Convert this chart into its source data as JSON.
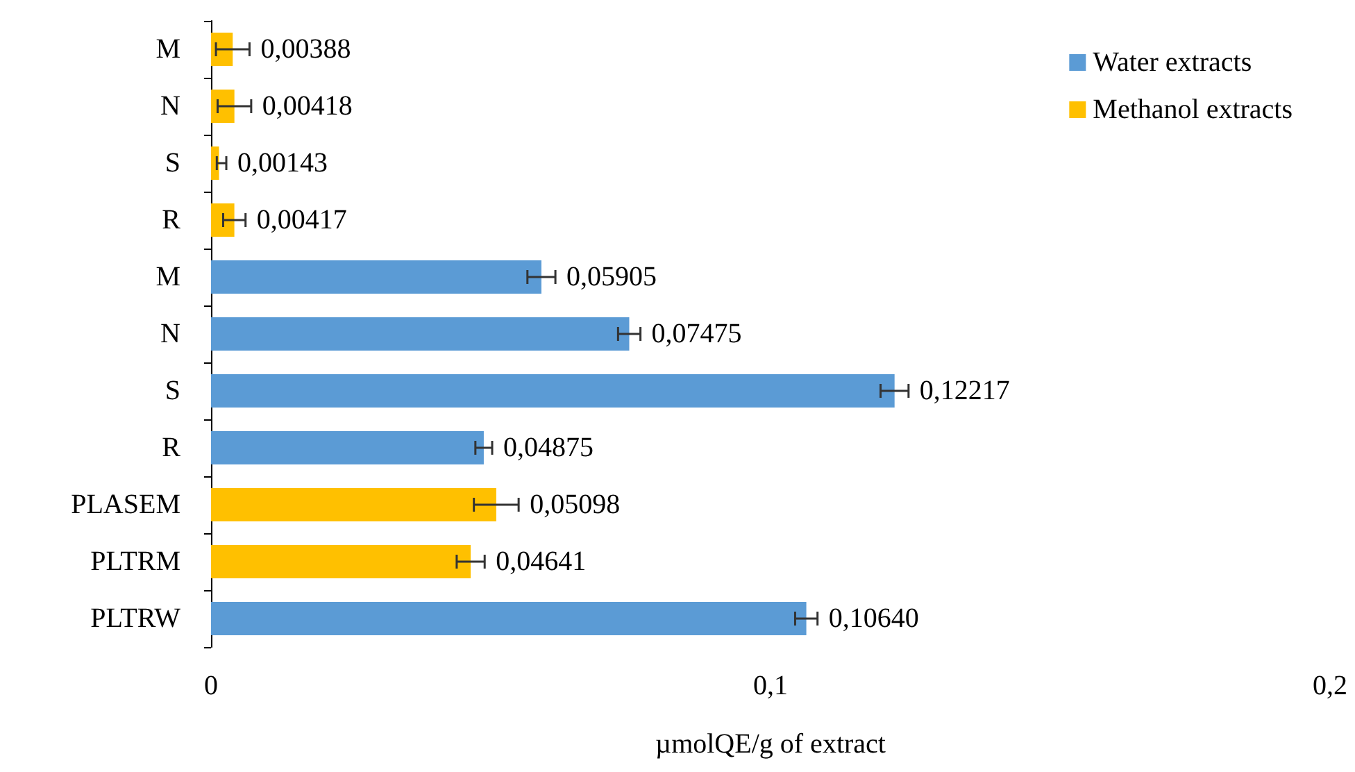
{
  "chart_data": {
    "type": "bar",
    "orientation": "horizontal",
    "stacked": true,
    "xlabel": "µmolQE/g of extract",
    "categories": [
      "M",
      "N",
      "S",
      "R",
      "M",
      "N",
      "S",
      "R",
      "PLASEM",
      "PLTRM",
      "PLTRW"
    ],
    "series": [
      {
        "name": "Water extracts",
        "color": "#5b9bd5",
        "values": [
          null,
          null,
          null,
          null,
          0.05905,
          0.07475,
          0.12217,
          0.04875,
          null,
          null,
          0.1064
        ],
        "errors": [
          null,
          null,
          null,
          null,
          0.0025,
          0.002,
          0.0025,
          0.0015,
          null,
          null,
          0.002
        ],
        "value_labels": [
          null,
          null,
          null,
          null,
          "0,05905",
          "0,07475",
          "0,12217",
          "0,04875",
          null,
          null,
          "0,10640"
        ]
      },
      {
        "name": "Methanol extracts",
        "color": "#ffc000",
        "values": [
          0.00388,
          0.00418,
          0.00143,
          0.00417,
          null,
          null,
          null,
          null,
          0.05098,
          0.04641,
          null
        ],
        "errors": [
          0.003,
          0.003,
          [
            0.0004,
            0.0013
          ],
          0.002,
          null,
          null,
          null,
          null,
          0.004,
          0.0025,
          null
        ],
        "value_labels": [
          "0,00388",
          "0,00418",
          "0,00143",
          "0,00417",
          null,
          null,
          null,
          null,
          "0,05098",
          "0,04641",
          null
        ]
      }
    ],
    "xlim": [
      0,
      0.2
    ],
    "xticks": [
      0,
      {
        "value": 0.1,
        "label": "0,1"
      },
      {
        "value": 0.2,
        "label": "0,2"
      }
    ],
    "grid": false,
    "legend": "top right"
  }
}
